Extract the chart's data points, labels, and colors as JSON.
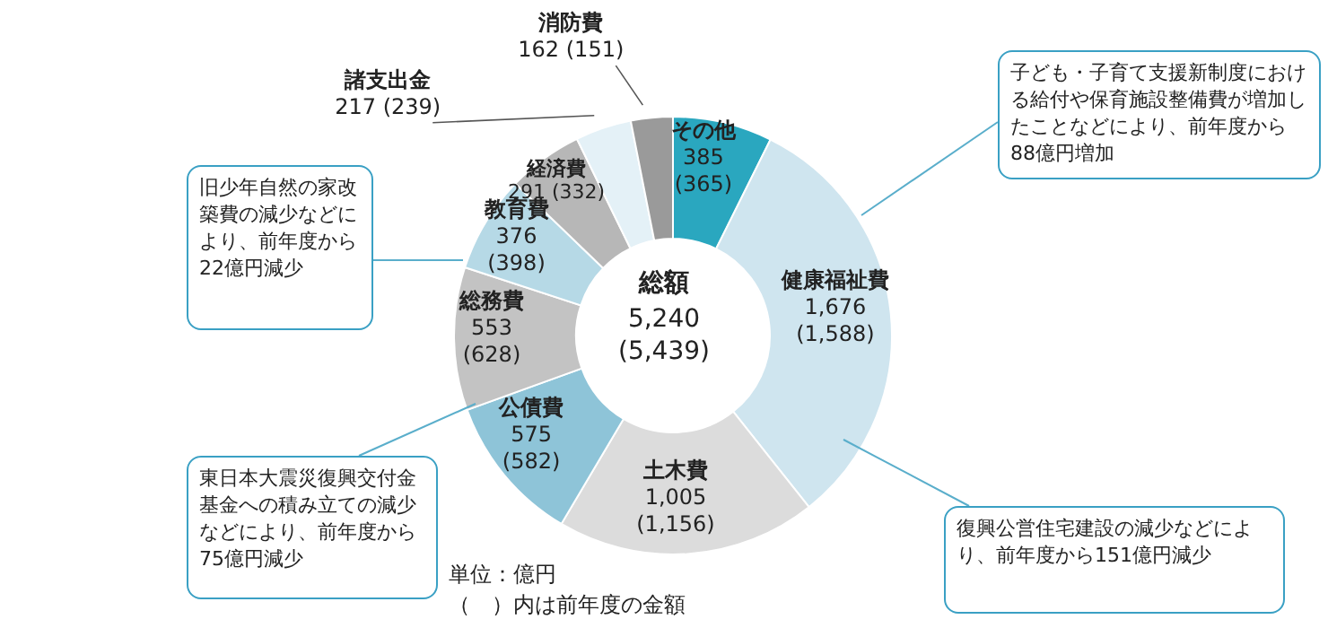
{
  "chart_data": {
    "type": "donut",
    "title": "総額",
    "subtitle": "5,240 (5,439)",
    "categories": [
      "その他",
      "健康福祉費",
      "土木費",
      "公債費",
      "総務費",
      "教育費",
      "経済費",
      "諸支出金",
      "消防費"
    ],
    "values": [
      385,
      1676,
      1005,
      575,
      553,
      376,
      291,
      217,
      162
    ],
    "value_labels": [
      "385 (365)",
      "1,676 (1,588)",
      "1,005 (1,156)",
      "575 (582)",
      "553 (628)",
      "376 (398)",
      "291 (332)",
      "217 (239)",
      "162 (151)"
    ],
    "colors": [
      "#2aa7bf",
      "#cfe5ef",
      "#dcdcdc",
      "#8ec4d8",
      "#c3c3c3",
      "#b6d9e6",
      "#b7b7b7",
      "#e4f1f7",
      "#9a9a9a"
    ],
    "legend": false,
    "annotations": [
      "子ども・子育て支援新制度における給付や保育施設整備費が増加したことなどにより、前年度から88億円増加",
      "旧少年自然の家改築費の減少などにより、前年度から22億円減少",
      "東日本大震災復興交付金基金への積み立ての減少などにより、前年度から75億円減少",
      "復興公営住宅建設の減少などにより、前年度から151億円減少",
      "単位：億円",
      "（　）内は前年度の金額"
    ]
  }
}
